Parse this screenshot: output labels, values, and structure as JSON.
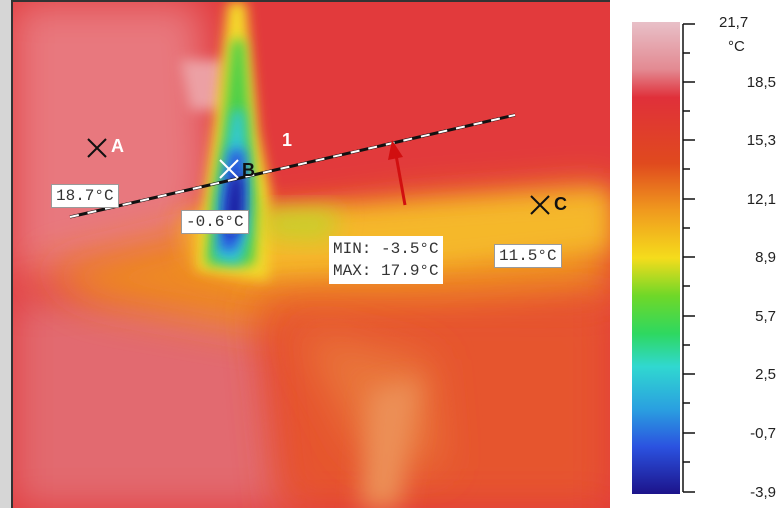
{
  "thermal_image": {
    "markers": [
      {
        "id": "A",
        "letter": "A",
        "temperature": "18.7°C",
        "color": "#000000"
      },
      {
        "id": "B",
        "letter": "B",
        "temperature": "-0.6°C",
        "color": "#ffffff"
      },
      {
        "id": "C",
        "letter": "C",
        "temperature": "11.5°C",
        "color": "#000000"
      }
    ],
    "line": {
      "number": "1",
      "min_text": "MIN: -3.5°C",
      "max_text": "MAX: 17.9°C"
    }
  },
  "scale": {
    "unit": "°C",
    "ticks": [
      "21,7",
      "18,5",
      "15,3",
      "12,1",
      "8,9",
      "5,7",
      "2,5",
      "-0,7",
      "-3,9"
    ],
    "colors": [
      "#e7b4c0",
      "#e1303a",
      "#f08a1e",
      "#f7d81b",
      "#57d630",
      "#30d8d0",
      "#2b62e8",
      "#1a1a92"
    ]
  }
}
